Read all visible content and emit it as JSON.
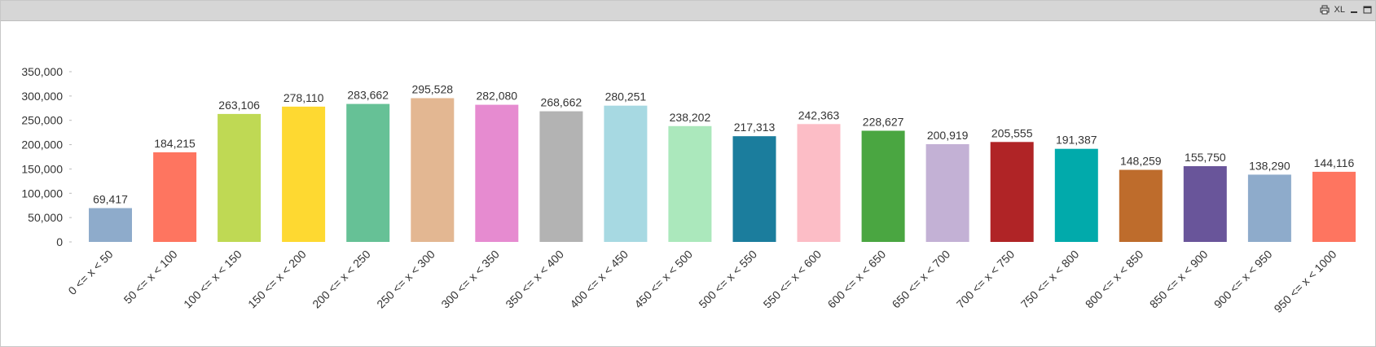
{
  "toolbar": {
    "print_icon": "print-icon",
    "xl_label": "XL",
    "minimize_icon": "minimize-icon",
    "maximize_icon": "maximize-icon"
  },
  "chart_data": {
    "type": "bar",
    "title": "",
    "xlabel": "",
    "ylabel": "",
    "ylim": [
      0,
      350000
    ],
    "yticks": [
      "0",
      "50,000",
      "100,000",
      "150,000",
      "200,000",
      "250,000",
      "300,000",
      "350,000"
    ],
    "ytick_values": [
      0,
      50000,
      100000,
      150000,
      200000,
      250000,
      300000,
      350000
    ],
    "categories": [
      "0 <= x < 50",
      "50 <= x < 100",
      "100 <= x < 150",
      "150 <= x < 200",
      "200 <= x < 250",
      "250 <= x < 300",
      "300 <= x < 350",
      "350 <= x < 400",
      "400 <= x < 450",
      "450 <= x < 500",
      "500 <= x < 550",
      "550 <= x < 600",
      "600 <= x < 650",
      "650 <= x < 700",
      "700 <= x < 750",
      "750 <= x < 800",
      "800 <= x < 850",
      "850 <= x < 900",
      "900 <= x < 950",
      "950 <= x < 1000"
    ],
    "values": [
      69417,
      184215,
      263106,
      278110,
      283662,
      295528,
      282080,
      268662,
      280251,
      238202,
      217313,
      242363,
      228627,
      200919,
      205555,
      191387,
      148259,
      155750,
      138290,
      144116
    ],
    "value_labels": [
      "69,417",
      "184,215",
      "263,106",
      "278,110",
      "283,662",
      "295,528",
      "282,080",
      "268,662",
      "280,251",
      "238,202",
      "217,313",
      "242,363",
      "228,627",
      "200,919",
      "205,555",
      "191,387",
      "148,259",
      "155,750",
      "138,290",
      "144,116"
    ],
    "colors": [
      "#8eabcb",
      "#fe7560",
      "#bfd954",
      "#fed931",
      "#66c196",
      "#e3b792",
      "#e68bd0",
      "#b3b3b3",
      "#a7d9e2",
      "#abe8bc",
      "#1b7d9d",
      "#fcbdc6",
      "#4aa641",
      "#c3b1d5",
      "#b02426",
      "#01aaab",
      "#be6c2c",
      "#69559a",
      "#8eabcb",
      "#fe7560"
    ],
    "grid": false,
    "legend": "none"
  }
}
